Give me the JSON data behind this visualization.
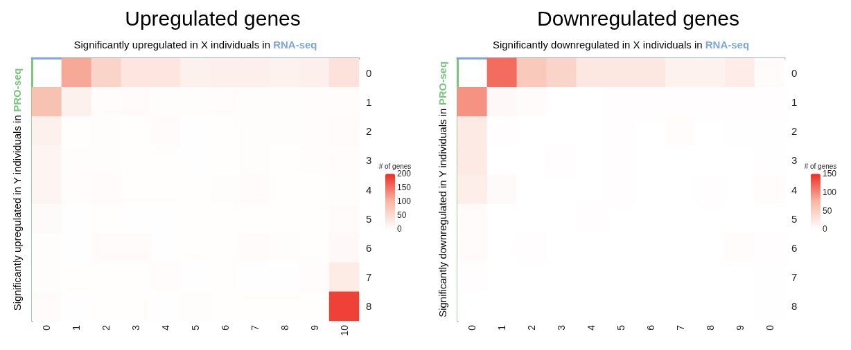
{
  "chart_data": [
    {
      "type": "heatmap",
      "title": "Upregulated genes",
      "xlabel": "Significantly upregulated in X individuals in RNA-seq",
      "ylabel": "Significantly upregulated in Y individuals in PRO-seq",
      "legend_title": "# of genes",
      "categories": [
        "0",
        "1",
        "2",
        "3",
        "4",
        "5",
        "6",
        "7",
        "8",
        "9",
        "10"
      ],
      "y_categories": [
        "0",
        "1",
        "2",
        "3",
        "4",
        "5",
        "6",
        "7",
        "8"
      ],
      "cells": [
        [
          null,
          110,
          60,
          35,
          35,
          20,
          22,
          22,
          18,
          22,
          40
        ],
        [
          85,
          20,
          4,
          5,
          3,
          3,
          4,
          3,
          3,
          4,
          4
        ],
        [
          20,
          2,
          3,
          2,
          6,
          1,
          2,
          3,
          3,
          4,
          5
        ],
        [
          15,
          3,
          3,
          2,
          2,
          1,
          2,
          3,
          2,
          3,
          4
        ],
        [
          15,
          4,
          6,
          2,
          2,
          2,
          3,
          5,
          2,
          2,
          3
        ],
        [
          7,
          1,
          2,
          1,
          1,
          2,
          2,
          2,
          2,
          2,
          6
        ],
        [
          3,
          1,
          5,
          6,
          1,
          2,
          2,
          5,
          3,
          2,
          8
        ],
        [
          3,
          2,
          2,
          2,
          4,
          1,
          2,
          1,
          1,
          4,
          28
        ],
        [
          5,
          1,
          2,
          2,
          1,
          3,
          2,
          2,
          2,
          2,
          185
        ]
      ],
      "clim": [
        0,
        200
      ],
      "cticks": [
        0,
        50,
        100,
        150,
        200
      ]
    },
    {
      "type": "heatmap",
      "title": "Downregulated genes",
      "xlabel": "Significantly downregulated in X individuals in RNA-seq",
      "ylabel": "Significantly downregulated in Y individuals in PRO-seq",
      "legend_title": "# of genes",
      "categories": [
        "0",
        "1",
        "2",
        "3",
        "4",
        "5",
        "6",
        "7",
        "8",
        "9",
        "0"
      ],
      "y_categories": [
        "0",
        "1",
        "2",
        "3",
        "4",
        "5",
        "6",
        "7",
        "8"
      ],
      "cells": [
        [
          null,
          115,
          55,
          45,
          25,
          25,
          25,
          14,
          14,
          20,
          4
        ],
        [
          95,
          6,
          4,
          0,
          0,
          2,
          2,
          2,
          2,
          2,
          2
        ],
        [
          22,
          2,
          0,
          0,
          0,
          2,
          0,
          3,
          0,
          1,
          1
        ],
        [
          22,
          0,
          0,
          2,
          0,
          2,
          0,
          0,
          0,
          0,
          1
        ],
        [
          18,
          5,
          0,
          0,
          0,
          2,
          0,
          0,
          2,
          0,
          3
        ],
        [
          4,
          0,
          0,
          0,
          2,
          0,
          0,
          0,
          0,
          0,
          0
        ],
        [
          4,
          0,
          2,
          0,
          0,
          0,
          0,
          0,
          0,
          3,
          2
        ],
        [
          2,
          0,
          0,
          0,
          0,
          0,
          0,
          0,
          0,
          0,
          1
        ],
        [
          0,
          0,
          0,
          0,
          0,
          0,
          0,
          0,
          0,
          0,
          1
        ]
      ],
      "clim": [
        0,
        150
      ],
      "cticks": [
        0,
        50,
        100,
        150
      ]
    }
  ]
}
